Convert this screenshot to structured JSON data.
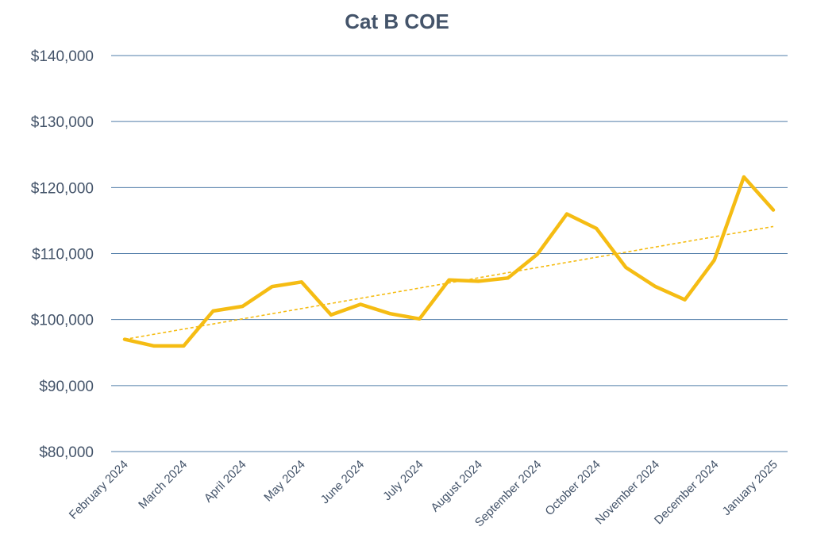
{
  "chart_data": {
    "type": "line",
    "title": "Cat B COE",
    "xlabel": "",
    "ylabel": "",
    "ylim": [
      80000,
      140000
    ],
    "yticks": [
      80000,
      90000,
      100000,
      110000,
      120000,
      130000,
      140000
    ],
    "ytick_labels": [
      "$80,000",
      "$90,000",
      "$100,000",
      "$110,000",
      "$120,000",
      "$130,000",
      "$140,000"
    ],
    "x_tick_labels": [
      "February 2024",
      "March 2024",
      "April 2024",
      "May 2024",
      "June 2024",
      "July 2024",
      "August 2024",
      "September 2024",
      "October 2024",
      "November 2024",
      "December 2024",
      "January 2025"
    ],
    "grid": true,
    "legend": "none",
    "series": [
      {
        "values": [
          97000,
          96000,
          96000,
          101300,
          102000,
          105000,
          105700,
          100700,
          102300,
          100900,
          100100,
          106000,
          105800,
          106300,
          109900,
          116000,
          113800,
          107900,
          105000,
          103000,
          109000,
          121600,
          116600
        ]
      }
    ],
    "trendline": {
      "start": 97000,
      "end": 114100
    },
    "colors": {
      "line": "#F5BC13",
      "trendline": "#F5BC13",
      "grid": "#4F7CA8",
      "text": "#44546A"
    }
  }
}
